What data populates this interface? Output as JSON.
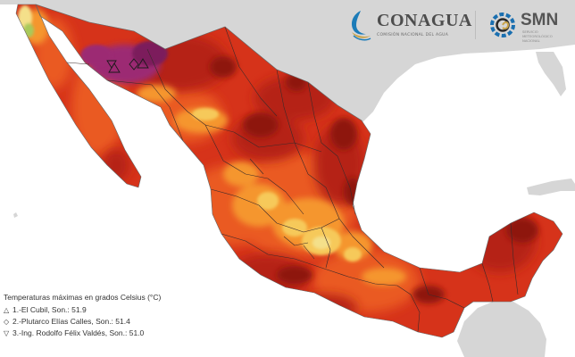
{
  "brand": {
    "conagua_name": "CONAGUA",
    "conagua_tagline": "COMISIÓN NACIONAL DEL AGUA",
    "smn_name": "SMN",
    "smn_tagline": "SERVICIO METEOROLÓGICO NACIONAL"
  },
  "legend": {
    "title": "Temperaturas máximas en grados Celsius (°C)",
    "stations": [
      {
        "symbol": "△",
        "text": "1.-El Cubil, Son.: 51.9"
      },
      {
        "symbol": "◇",
        "text": "2.-Plutarco Elías Calles, Son.: 51.4"
      },
      {
        "symbol": "▽",
        "text": "3.-Ing. Rodolfo Félix Valdés, Son.: 51.0"
      }
    ]
  },
  "colors": {
    "ocean": "#ffffff",
    "neighbor_land": "#d6d6d6",
    "hottest": "#9c2a73",
    "very_hot": "#8e1410",
    "hot_dark": "#b52113",
    "hot": "#d6331a",
    "warm": "#ea5a23",
    "mild": "#f5962f",
    "cooler": "#f6c95a",
    "coolest": "#f4e08a",
    "coast_cool": "#a8c95a",
    "borders": "#3b2a2a",
    "conagua_swirl": "#1c7cb8",
    "smn_gear": "#1a6fb0"
  }
}
